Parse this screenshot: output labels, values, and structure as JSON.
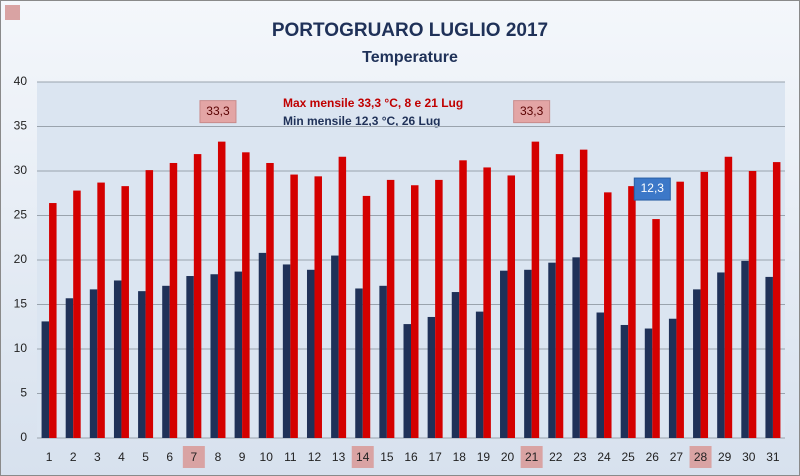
{
  "chart_data": {
    "type": "bar",
    "title": "PORTOGRUARO LUGLIO 2017",
    "subtitle": "Temperature",
    "annotations": [
      "Max mensile  33,3 °C, 8 e 21 Lug",
      "Min mensile 12,3 °C, 26 Lug"
    ],
    "categories": [
      "1",
      "2",
      "3",
      "4",
      "5",
      "6",
      "7",
      "8",
      "9",
      "10",
      "11",
      "12",
      "13",
      "14",
      "15",
      "16",
      "17",
      "18",
      "19",
      "20",
      "21",
      "22",
      "23",
      "24",
      "25",
      "26",
      "27",
      "28",
      "29",
      "30",
      "31"
    ],
    "highlighted": [
      false,
      false,
      false,
      false,
      false,
      false,
      true,
      false,
      false,
      false,
      false,
      false,
      false,
      true,
      false,
      false,
      false,
      false,
      false,
      false,
      true,
      false,
      false,
      false,
      false,
      false,
      false,
      true,
      false,
      false,
      false
    ],
    "highlight_color": "#d9a3a3",
    "series": [
      {
        "name": "Min",
        "color": "#1f3158",
        "label_color": "#3c78c8",
        "values": [
          13.1,
          15.7,
          16.7,
          17.7,
          16.5,
          17.1,
          18.2,
          18.4,
          18.7,
          20.8,
          19.5,
          18.9,
          20.5,
          16.8,
          17.1,
          12.8,
          13.6,
          16.4,
          14.2,
          18.8,
          18.9,
          19.7,
          20.3,
          14.1,
          12.7,
          12.3,
          13.4,
          16.7,
          18.6,
          19.9,
          18.1
        ],
        "value_labels": [
          null,
          null,
          null,
          null,
          null,
          null,
          null,
          null,
          null,
          null,
          null,
          null,
          null,
          null,
          null,
          null,
          null,
          null,
          null,
          null,
          null,
          null,
          null,
          null,
          null,
          "12,3",
          null,
          null,
          null,
          null,
          null
        ]
      },
      {
        "name": "Max",
        "color": "#d40000",
        "label_color": "#e3a5a5",
        "values": [
          26.4,
          27.8,
          28.7,
          28.3,
          30.1,
          30.9,
          31.9,
          33.3,
          32.1,
          30.9,
          29.6,
          29.4,
          31.6,
          27.2,
          29.0,
          28.4,
          29.0,
          31.2,
          30.4,
          29.5,
          33.3,
          31.9,
          32.4,
          27.6,
          28.3,
          24.6,
          28.8,
          29.9,
          31.6,
          30.0,
          31.0
        ],
        "value_labels": [
          null,
          null,
          null,
          null,
          null,
          null,
          null,
          "33,3",
          null,
          null,
          null,
          null,
          null,
          null,
          null,
          null,
          null,
          null,
          null,
          null,
          "33,3",
          null,
          null,
          null,
          null,
          null,
          null,
          null,
          null,
          null,
          null
        ]
      }
    ],
    "ylim": [
      0,
      40
    ],
    "yticks": [
      0,
      5,
      10,
      15,
      20,
      25,
      30,
      35,
      40
    ],
    "grid": true
  }
}
